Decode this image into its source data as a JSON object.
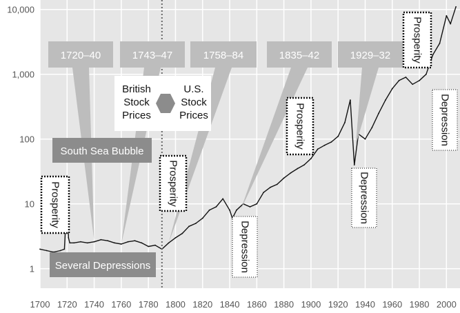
{
  "chart_data": {
    "type": "line",
    "title": "",
    "xlabel": "",
    "ylabel": "",
    "yscale": "log",
    "xlim": [
      1700,
      2010
    ],
    "ylim": [
      0.5,
      14000
    ],
    "grid": true,
    "x_ticks": [
      1700,
      1720,
      1740,
      1760,
      1780,
      1800,
      1820,
      1840,
      1860,
      1880,
      1900,
      1920,
      1940,
      1960,
      1980,
      2000
    ],
    "x_tick_labels": [
      "1700",
      "1720",
      "1740",
      "1760",
      "1780",
      "1800",
      "1820",
      "1840",
      "1860",
      "1880",
      "1900",
      "1920",
      "1940",
      "1960",
      "1980",
      "2000"
    ],
    "y_ticks": [
      1,
      10,
      100,
      1000,
      10000
    ],
    "y_tick_labels": [
      "1",
      "10",
      "100",
      "1,000",
      "10,000"
    ],
    "divider_year": 1790,
    "series": [
      {
        "name": "British Stock Prices",
        "x": [
          1700,
          1705,
          1710,
          1715,
          1718,
          1719,
          1720,
          1721,
          1722,
          1725,
          1730,
          1735,
          1740,
          1745,
          1750,
          1755,
          1760,
          1765,
          1770,
          1775,
          1780,
          1785,
          1790
        ],
        "y": [
          2.0,
          1.9,
          1.8,
          1.9,
          2.0,
          5.0,
          20.0,
          3.0,
          2.5,
          2.5,
          2.6,
          2.5,
          2.6,
          2.8,
          2.7,
          2.5,
          2.4,
          2.6,
          2.7,
          2.5,
          2.2,
          2.3,
          2.0
        ]
      },
      {
        "name": "U.S. Stock Prices",
        "x": [
          1790,
          1795,
          1800,
          1805,
          1810,
          1815,
          1820,
          1825,
          1830,
          1835,
          1840,
          1842,
          1845,
          1850,
          1855,
          1860,
          1865,
          1870,
          1875,
          1880,
          1885,
          1890,
          1895,
          1900,
          1905,
          1910,
          1915,
          1920,
          1925,
          1929,
          1932,
          1935,
          1940,
          1945,
          1950,
          1955,
          1960,
          1965,
          1970,
          1975,
          1980,
          1985,
          1990,
          1995,
          2000,
          2003,
          2007
        ],
        "y": [
          2.0,
          2.5,
          3.0,
          3.5,
          4.5,
          5.0,
          6.0,
          8.0,
          9.0,
          12.0,
          8.0,
          6.0,
          8.0,
          10.0,
          9.0,
          10.0,
          15.0,
          18.0,
          20.0,
          25.0,
          30.0,
          35.0,
          40.0,
          50.0,
          70.0,
          80.0,
          90.0,
          110.0,
          180.0,
          400.0,
          40.0,
          120.0,
          100.0,
          150.0,
          250.0,
          400.0,
          600.0,
          800.0,
          900.0,
          700.0,
          800.0,
          1000.0,
          2000.0,
          3000.0,
          8000.0,
          6000.0,
          11000.0
        ]
      }
    ],
    "annotations": {
      "callouts": [
        {
          "label": "1720–40",
          "target_year": 1740,
          "target_value": 2.7
        },
        {
          "label": "1743–47",
          "target_year": 1760,
          "target_value": 2.4
        },
        {
          "label": "1758–84",
          "target_year": 1795,
          "target_value": 2.5
        },
        {
          "label": "1835–42",
          "target_year": 1848,
          "target_value": 8.0
        },
        {
          "label": "1929–32",
          "target_year": 1933,
          "target_value": 80.0
        }
      ],
      "events": [
        {
          "text": "Prosperity",
          "year": 1702,
          "value": 6.0
        },
        {
          "text": "Prosperity",
          "year": 1790,
          "value": 15.0
        },
        {
          "text": "Prosperity",
          "year": 1885,
          "value": 300.0
        },
        {
          "text": "Prosperity",
          "year": 1977,
          "value": 6000.0
        },
        {
          "text": "Depression",
          "year": 1852,
          "value": 1.4
        },
        {
          "text": "Depression",
          "year": 1938,
          "value": 14.0
        },
        {
          "text": "Depression",
          "year": 1996,
          "value": 400.0
        }
      ],
      "bars": [
        {
          "text": "South Sea Bubble",
          "year": 1710
        },
        {
          "text": "Several Depressions",
          "year": 1710
        }
      ],
      "british_label": "British Stock Prices",
      "us_label": "U.S. Stock Prices"
    }
  }
}
